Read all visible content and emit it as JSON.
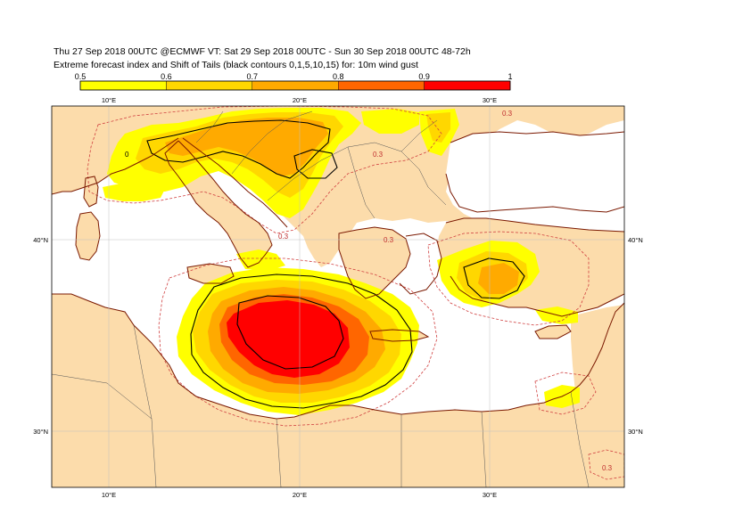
{
  "header": {
    "line1": "Thu 27 Sep 2018 00UTC @ECMWF VT: Sat 29 Sep 2018 00UTC - Sun 30 Sep 2018 00UTC  48-72h",
    "line2": "Extreme forecast index and Shift of Tails (black contours 0,1,5,10,15) for: 10m wind gust"
  },
  "colorbar": {
    "ticks": [
      "0.5",
      "0.6",
      "0.7",
      "0.8",
      "0.9",
      "1"
    ],
    "colors": [
      "#ffff00",
      "#ffd700",
      "#ffaa00",
      "#ff6600",
      "#ff0000"
    ]
  },
  "map": {
    "lon_labels": [
      "10°E",
      "20°E",
      "30°E"
    ],
    "lat_labels": [
      "40°N",
      "30°N"
    ],
    "contour_labels": [
      "0",
      "0.3"
    ],
    "colors": {
      "land": "#fcdcab",
      "sea": "#ffffff",
      "coast": "#7a1800",
      "borders": "#555555",
      "grid": "#c0c0c0",
      "sot_contour": "#000000",
      "efi_dashed": "#d04040"
    }
  }
}
